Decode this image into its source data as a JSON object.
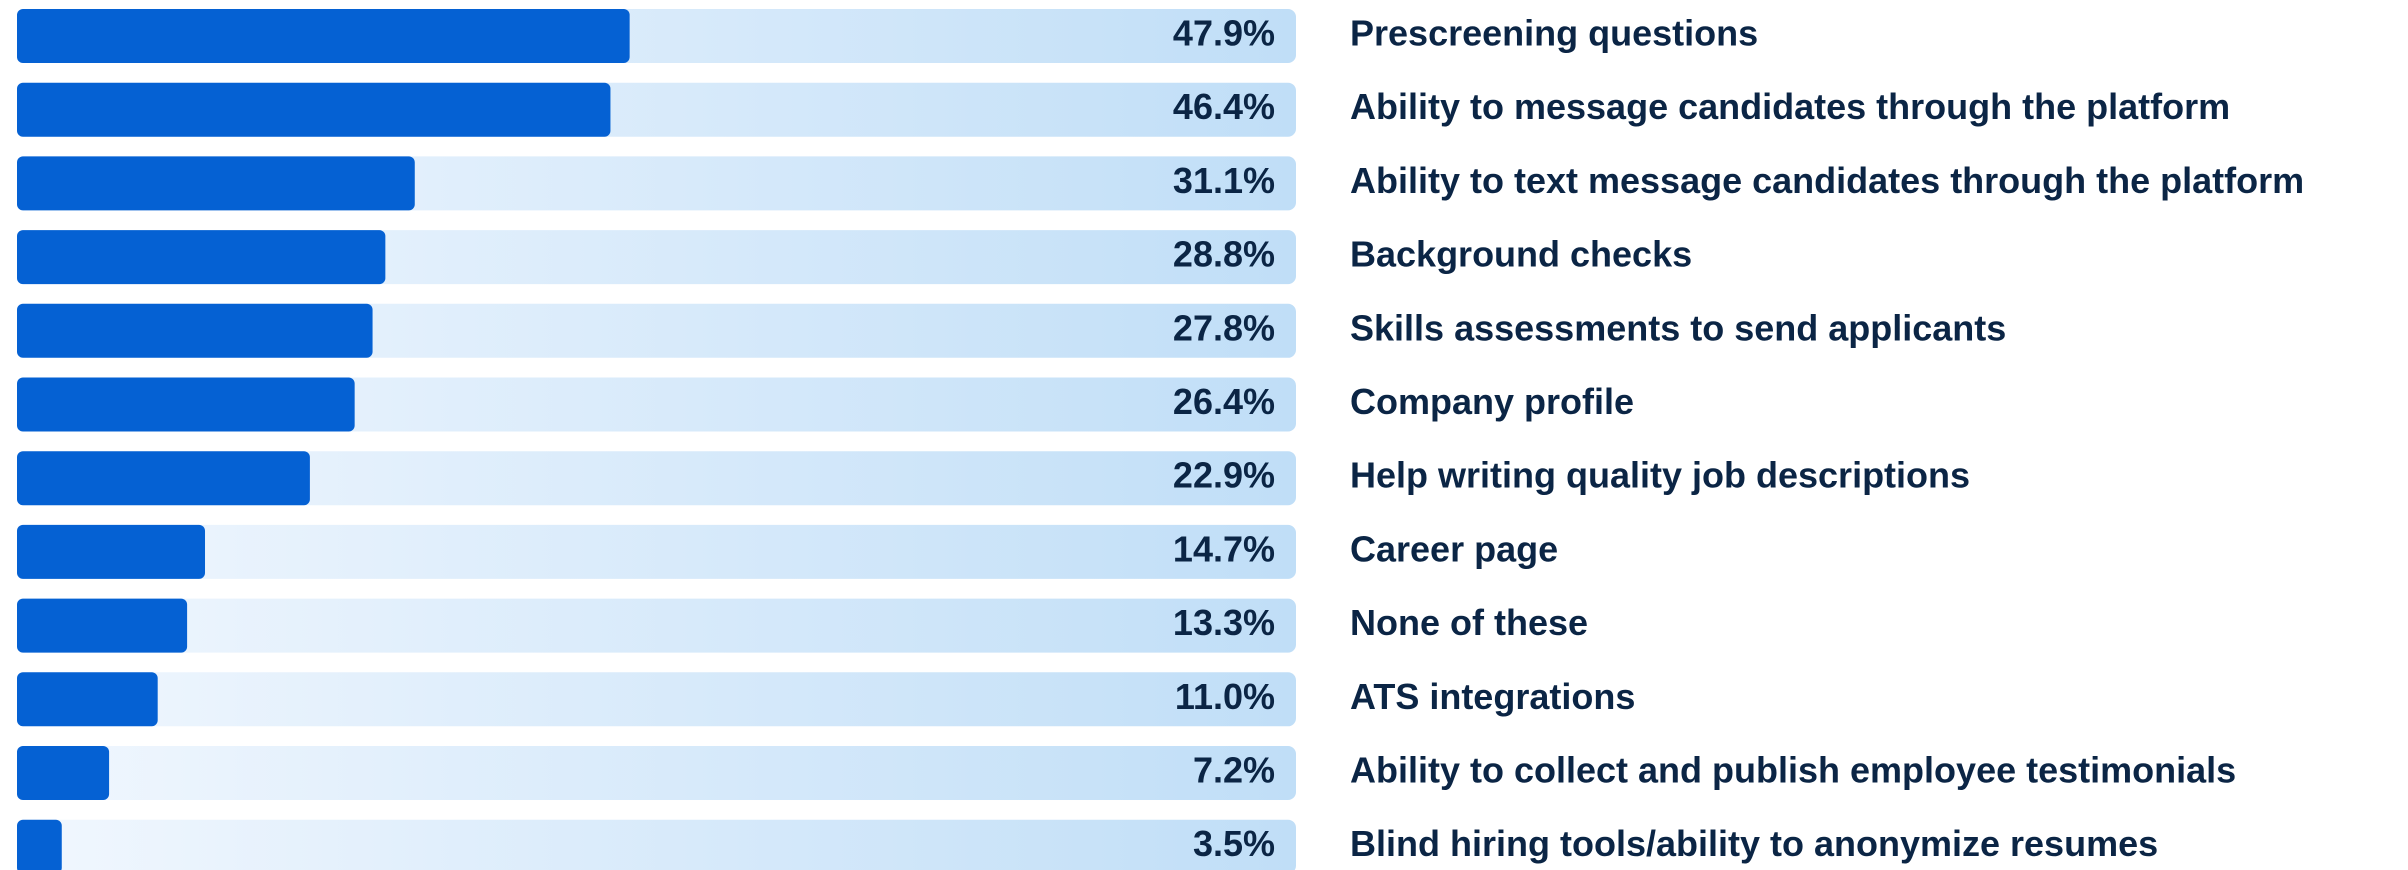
{
  "chart_data": {
    "type": "bar",
    "orientation": "horizontal",
    "categories": [
      "Prescreening questions",
      "Ability to message candidates through the platform",
      "Ability to text message candidates through the platform",
      "Background checks",
      "Skills assessments to send applicants",
      "Company profile",
      "Help writing quality job descriptions",
      "Career page",
      "None of these",
      "ATS integrations",
      "Ability to collect and publish employee testimonials",
      "Blind hiring tools/ability to anonymize resumes"
    ],
    "values": [
      47.9,
      46.4,
      31.1,
      28.8,
      27.8,
      26.4,
      22.9,
      14.7,
      13.3,
      11.0,
      7.2,
      3.5
    ],
    "value_labels": [
      "47.9%",
      "46.4%",
      "31.1%",
      "28.8%",
      "27.8%",
      "26.4%",
      "22.9%",
      "14.7%",
      "13.3%",
      "11.0%",
      "7.2%",
      "3.5%"
    ],
    "color": "#0561d3",
    "xlim": [
      0,
      100
    ]
  }
}
